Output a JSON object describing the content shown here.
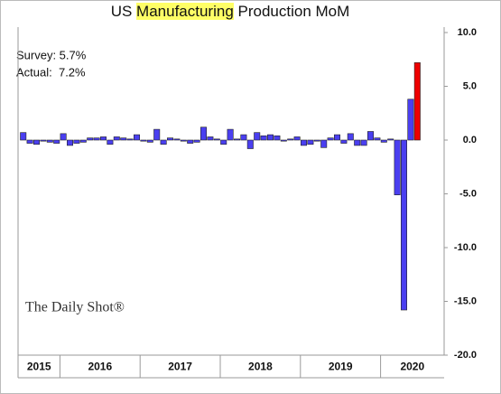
{
  "chart_data": {
    "type": "bar",
    "title": {
      "before": "US",
      "highlight": "Manufacturing",
      "after": "Production MoM"
    },
    "annotations": [
      "Survey: 5.7%",
      "Actual:  7.2%"
    ],
    "source": "The Daily Shot®",
    "categories": [
      "2015",
      null,
      null,
      null,
      null,
      null,
      "2016",
      null,
      null,
      null,
      null,
      null,
      null,
      null,
      null,
      null,
      null,
      null,
      "2017",
      null,
      null,
      null,
      null,
      null,
      null,
      null,
      null,
      null,
      null,
      null,
      "2018",
      null,
      null,
      null,
      null,
      null,
      null,
      null,
      null,
      null,
      null,
      null,
      "2019",
      null,
      null,
      null,
      null,
      null,
      null,
      null,
      null,
      null,
      null,
      null,
      "2020",
      null,
      null,
      null,
      null,
      null
    ],
    "values": [
      0.7,
      -0.3,
      -0.4,
      -0.1,
      -0.2,
      -0.3,
      0.6,
      -0.5,
      -0.3,
      -0.2,
      0.2,
      0.2,
      0.3,
      -0.4,
      0.3,
      0.2,
      0.1,
      0.5,
      -0.1,
      -0.2,
      1.0,
      -0.4,
      0.2,
      0.1,
      -0.1,
      -0.3,
      -0.2,
      1.2,
      0.3,
      0.1,
      -0.4,
      1.0,
      0.1,
      0.5,
      -0.8,
      0.7,
      0.4,
      0.5,
      0.4,
      -0.1,
      0.1,
      0.3,
      -0.5,
      -0.4,
      -0.1,
      -0.7,
      0.2,
      0.5,
      -0.3,
      0.6,
      -0.5,
      -0.5,
      0.8,
      0.2,
      -0.2,
      0.1,
      -5.1,
      -15.8,
      3.8,
      7.2
    ],
    "colors": [
      "#4a3ff0",
      "#4a3ff0",
      "#4a3ff0",
      "#4a3ff0",
      "#4a3ff0",
      "#4a3ff0",
      "#4a3ff0",
      "#4a3ff0",
      "#4a3ff0",
      "#4a3ff0",
      "#4a3ff0",
      "#4a3ff0",
      "#4a3ff0",
      "#4a3ff0",
      "#4a3ff0",
      "#4a3ff0",
      "#4a3ff0",
      "#4a3ff0",
      "#4a3ff0",
      "#4a3ff0",
      "#4a3ff0",
      "#4a3ff0",
      "#4a3ff0",
      "#4a3ff0",
      "#4a3ff0",
      "#4a3ff0",
      "#4a3ff0",
      "#4a3ff0",
      "#4a3ff0",
      "#4a3ff0",
      "#4a3ff0",
      "#4a3ff0",
      "#4a3ff0",
      "#4a3ff0",
      "#4a3ff0",
      "#4a3ff0",
      "#4a3ff0",
      "#4a3ff0",
      "#4a3ff0",
      "#4a3ff0",
      "#4a3ff0",
      "#4a3ff0",
      "#4a3ff0",
      "#4a3ff0",
      "#4a3ff0",
      "#4a3ff0",
      "#4a3ff0",
      "#4a3ff0",
      "#4a3ff0",
      "#4a3ff0",
      "#4a3ff0",
      "#4a3ff0",
      "#4a3ff0",
      "#4a3ff0",
      "#4a3ff0",
      "#4a3ff0",
      "#4a3ff0",
      "#4a3ff0",
      "#4a3ff0",
      "#ee0000"
    ],
    "ylim": [
      -20,
      10
    ],
    "yticks": [
      {
        "value": 10,
        "label": "10.0"
      },
      {
        "value": 5,
        "label": "5.0"
      },
      {
        "value": 0,
        "label": "0.0"
      },
      {
        "value": -5,
        "label": "-5.0"
      },
      {
        "value": -10,
        "label": "-10.0"
      },
      {
        "value": -15,
        "label": "-15.0"
      },
      {
        "value": -20,
        "label": "-20.0"
      }
    ]
  }
}
